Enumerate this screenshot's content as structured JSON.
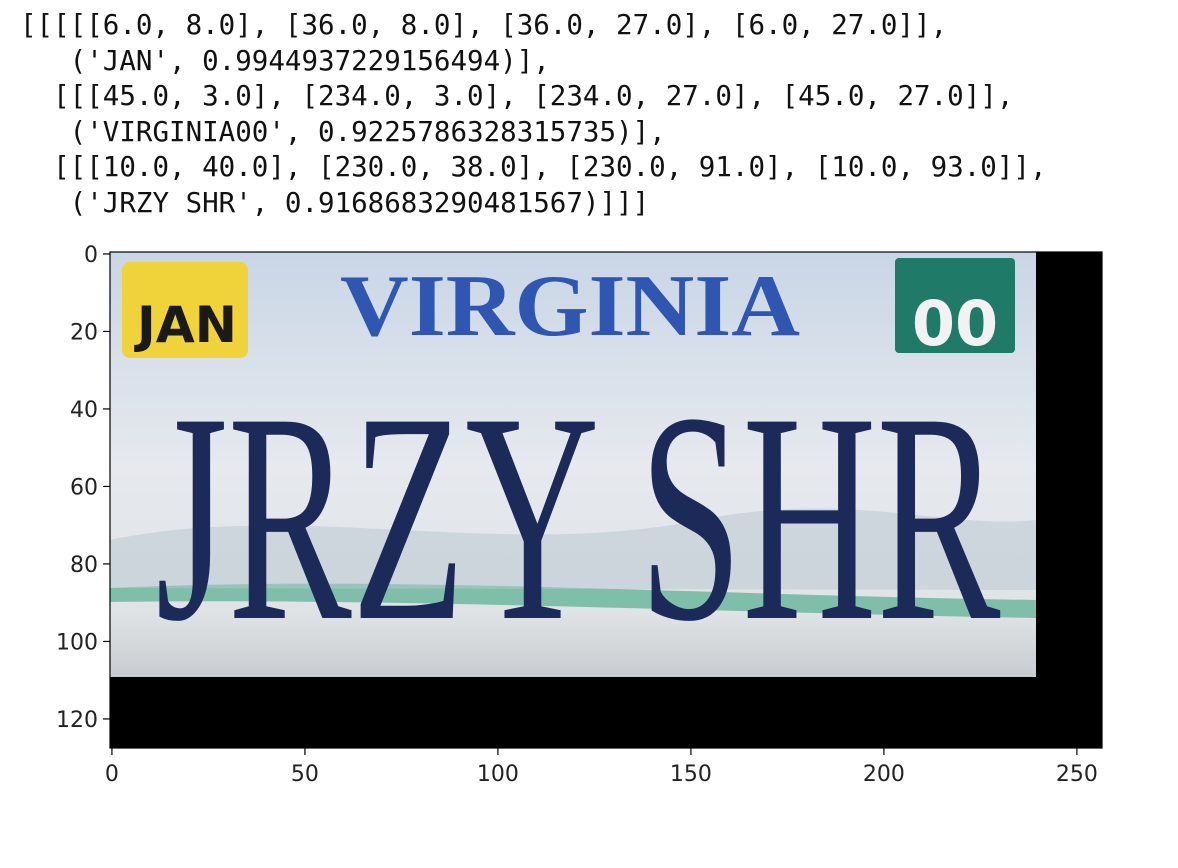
{
  "output_text": [
    "[[[[[6.0, 8.0], [36.0, 8.0], [36.0, 27.0], [6.0, 27.0]],",
    "   ('JAN', 0.9944937229156494)],",
    "  [[[45.0, 3.0], [234.0, 3.0], [234.0, 27.0], [45.0, 27.0]],",
    "   ('VIRGINIA00', 0.9225786328315735)],",
    "  [[[10.0, 40.0], [230.0, 38.0], [230.0, 91.0], [10.0, 93.0]],",
    "   ('JRZY SHR', 0.9168683290481567)]]]"
  ],
  "plot": {
    "xlim": [
      -0.5,
      256.5
    ],
    "ylim": [
      127.5,
      -0.5
    ],
    "xticks": [
      0,
      50,
      100,
      150,
      200,
      250
    ],
    "yticks": [
      0,
      20,
      40,
      60,
      80,
      100,
      120
    ]
  },
  "plate": {
    "sticker_month": "JAN",
    "state": "VIRGINIA",
    "sticker_year": "00",
    "number": "JRZY SHR"
  }
}
